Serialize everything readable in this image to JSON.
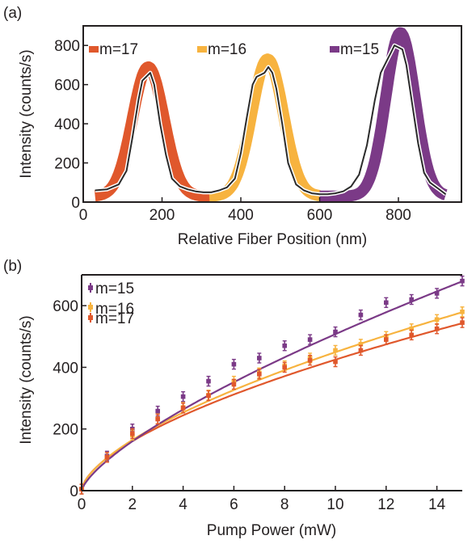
{
  "colors": {
    "m15": "#7b3a87",
    "m16": "#f7b33f",
    "m17": "#e0582c",
    "measured": "#2b2b2b"
  },
  "chart_data": [
    {
      "panel_label": "(a)",
      "type": "area",
      "xlabel": "Relative Fiber Position (nm)",
      "ylabel": "Intensity (counts/s)",
      "xlim": [
        0,
        960
      ],
      "ylim": [
        0,
        900
      ],
      "xticks": [
        "0",
        "200",
        "400",
        "600",
        "800"
      ],
      "yticks": [
        "0",
        "200",
        "400",
        "600",
        "800"
      ],
      "legend_position": "top",
      "series": [
        {
          "name": "m=17",
          "color_key": "m17",
          "center": 165,
          "sigma": 40,
          "peak": 690,
          "baseline": 30,
          "x_range": [
            30,
            330
          ]
        },
        {
          "name": "m=16",
          "color_key": "m16",
          "center": 468,
          "sigma": 40,
          "peak": 730,
          "baseline": 30,
          "x_range": [
            320,
            600
          ]
        },
        {
          "name": "m=15",
          "color_key": "m15",
          "center": 805,
          "sigma": 37,
          "peak": 865,
          "baseline": 30,
          "x_range": [
            600,
            920
          ]
        }
      ],
      "measured_trace": {
        "x": [
          30,
          60,
          90,
          110,
          125,
          140,
          150,
          160,
          170,
          180,
          195,
          210,
          225,
          245,
          265,
          285,
          305,
          325,
          345,
          365,
          385,
          400,
          415,
          430,
          440,
          450,
          460,
          470,
          480,
          490,
          505,
          520,
          540,
          560,
          580,
          600,
          620,
          640,
          660,
          680,
          700,
          720,
          740,
          755,
          770,
          780,
          790,
          800,
          810,
          820,
          835,
          850,
          865,
          880,
          900,
          920
        ],
        "y": [
          60,
          65,
          90,
          160,
          330,
          520,
          620,
          640,
          660,
          600,
          400,
          240,
          120,
          80,
          65,
          55,
          50,
          50,
          60,
          75,
          120,
          250,
          430,
          600,
          640,
          650,
          660,
          690,
          660,
          580,
          400,
          200,
          90,
          60,
          45,
          40,
          40,
          45,
          55,
          80,
          140,
          290,
          520,
          660,
          720,
          760,
          800,
          790,
          780,
          700,
          500,
          300,
          150,
          100,
          70,
          40
        ]
      }
    },
    {
      "panel_label": "(b)",
      "type": "scatter",
      "xlabel": "Pump Power (mW)",
      "ylabel": "Intensity (counts/s)",
      "xlim": [
        0,
        15
      ],
      "ylim": [
        0,
        700
      ],
      "xticks": [
        "0",
        "2",
        "4",
        "6",
        "8",
        "10",
        "12",
        "14"
      ],
      "yticks": [
        "0",
        "200",
        "400",
        "600"
      ],
      "legend_position": "top-left",
      "x": [
        0,
        1,
        2,
        3,
        4,
        5,
        6,
        7,
        8,
        9,
        10,
        11,
        12,
        13,
        14,
        15
      ],
      "series": [
        {
          "name": "m=15",
          "color_key": "m15",
          "values": [
            5,
            112,
            200,
            258,
            305,
            355,
            410,
            430,
            470,
            490,
            515,
            570,
            610,
            620,
            640,
            680
          ],
          "fit_amp": 97.4,
          "fit_exp": 0.717
        },
        {
          "name": "m=16",
          "color_key": "m16",
          "values": [
            5,
            108,
            180,
            233,
            270,
            310,
            355,
            382,
            405,
            430,
            455,
            475,
            500,
            525,
            555,
            580
          ],
          "fit_amp": 106.5,
          "fit_exp": 0.625
        },
        {
          "name": "m=17",
          "color_key": "m17",
          "values": [
            5,
            108,
            185,
            232,
            268,
            308,
            345,
            378,
            400,
            423,
            418,
            455,
            490,
            505,
            525,
            545
          ],
          "fit_amp": 105.5,
          "fit_exp": 0.605
        }
      ]
    }
  ]
}
